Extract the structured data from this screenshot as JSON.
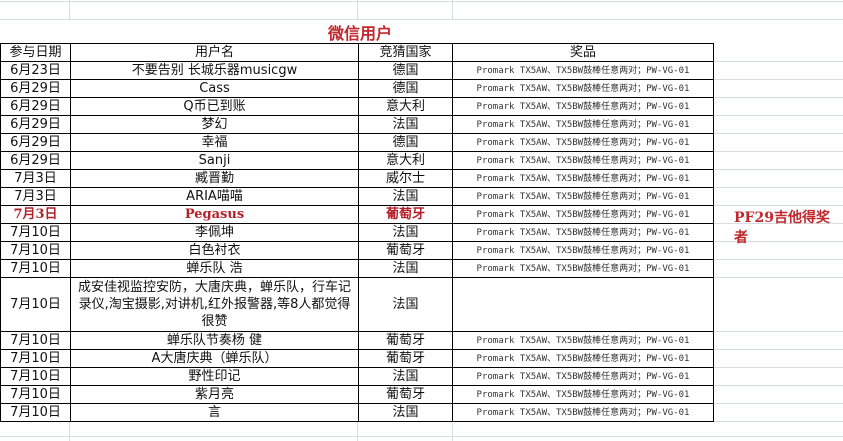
{
  "title": "微信用户",
  "headers": [
    "参与日期",
    "用户名",
    "竞猜国家",
    "奖品"
  ],
  "rows": [
    {
      "date": "6月23日",
      "user": "不要告别 长城乐器musicgw",
      "country": "德国",
      "prize": "Promark TX5AW、TX5BW鼓棒任意两对；PW-VG-01"
    },
    {
      "date": "6月29日",
      "user": "Cass",
      "country": "德国",
      "prize": "Promark TX5AW、TX5BW鼓棒任意两对；PW-VG-01"
    },
    {
      "date": "6月29日",
      "user": "Q币已到账",
      "country": "意大利",
      "prize": "Promark TX5AW、TX5BW鼓棒任意两对；PW-VG-01"
    },
    {
      "date": "6月29日",
      "user": "梦幻",
      "country": "法国",
      "prize": "Promark TX5AW、TX5BW鼓棒任意两对；PW-VG-01"
    },
    {
      "date": "6月29日",
      "user": "幸福",
      "country": "德国",
      "prize": "Promark TX5AW、TX5BW鼓棒任意两对；PW-VG-01"
    },
    {
      "date": "6月29日",
      "user": "Sanji",
      "country": "意大利",
      "prize": "Promark TX5AW、TX5BW鼓棒任意两对；PW-VG-01"
    },
    {
      "date": "7月3日",
      "user": "臧晋勤",
      "country": "威尔士",
      "prize": "Promark TX5AW、TX5BW鼓棒任意两对；PW-VG-01"
    },
    {
      "date": "7月3日",
      "user": "ARIA喵喵",
      "country": "法国",
      "prize": "Promark TX5AW、TX5BW鼓棒任意两对；PW-VG-01"
    },
    {
      "date": "7月3日",
      "user": "Pegasus",
      "country": "葡萄牙",
      "prize": "Promark TX5AW、TX5BW鼓棒任意两对；PW-VG-01",
      "highlight": true
    },
    {
      "date": "7月10日",
      "user": "李佩坤",
      "country": "法国",
      "prize": "Promark TX5AW、TX5BW鼓棒任意两对；PW-VG-01"
    },
    {
      "date": "7月10日",
      "user": "白色衬衣",
      "country": "葡萄牙",
      "prize": "Promark TX5AW、TX5BW鼓棒任意两对；PW-VG-01"
    },
    {
      "date": "7月10日",
      "user": "蝉乐队 浩",
      "country": "法国",
      "prize": "Promark TX5AW、TX5BW鼓棒任意两对；PW-VG-01"
    },
    {
      "date": "7月10日",
      "user": "成安佳视监控安防，大唐庆典，蝉乐队，行车记录仪,淘宝摄影,对讲机,红外报警器,等8人都觉得很赞",
      "country": "法国",
      "prize": "",
      "tall": true
    },
    {
      "date": "7月10日",
      "user": "蝉乐队节奏杨 健",
      "country": "葡萄牙",
      "prize": "Promark TX5AW、TX5BW鼓棒任意两对；PW-VG-01"
    },
    {
      "date": "7月10日",
      "user": "A大唐庆典（蝉乐队）",
      "country": "葡萄牙",
      "prize": "Promark TX5AW、TX5BW鼓棒任意两对；PW-VG-01"
    },
    {
      "date": "7月10日",
      "user": "野性印记",
      "country": "法国",
      "prize": "Promark TX5AW、TX5BW鼓棒任意两对；PW-VG-01"
    },
    {
      "date": "7月10日",
      "user": "紫月亮",
      "country": "葡萄牙",
      "prize": "Promark TX5AW、TX5BW鼓棒任意两对；PW-VG-01"
    },
    {
      "date": "7月10日",
      "user": "言",
      "country": "法国",
      "prize": "Promark TX5AW、TX5BW鼓棒任意两对；PW-VG-01"
    }
  ],
  "winner_note": "PF29吉他得奖者",
  "colors": {
    "accent": "#c0282d"
  }
}
